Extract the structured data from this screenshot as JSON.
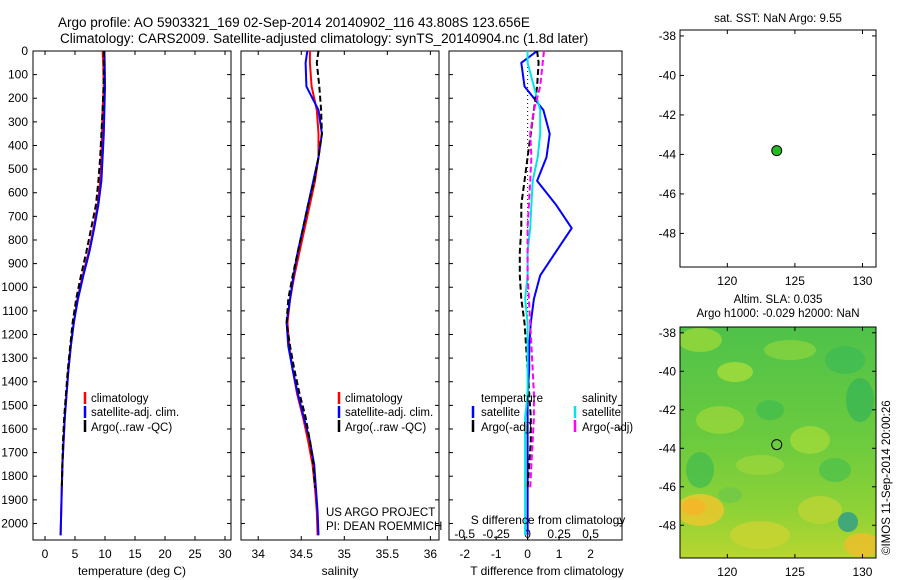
{
  "header": {
    "line1": "Argo profile: AO 5903321_169 02-Sep-2014 20140902_116 43.808S 123.656E",
    "line2": "Climatology: CARS2009. Satellite-adjusted climatology: synTS_20140904.nc (1.8d later)"
  },
  "credit": {
    "line1": "US ARGO PROJECT",
    "line2": "PI: DEAN ROEMMICH"
  },
  "watermark": "©IMOS 11-Sep-2014 20:00:26",
  "colors": {
    "climatology": "#ff0000",
    "satellite": "#0000ff",
    "argo": "#000000",
    "sal_satellite": "#00e5e5",
    "sal_argo": "#ff00ff",
    "marker": "#22bb22"
  },
  "chart_data": [
    {
      "type": "line",
      "id": "temperature",
      "xlabel": "temperature (deg C)",
      "ylabel": "",
      "xlim": [
        -2,
        31
      ],
      "ylim": [
        2070,
        0
      ],
      "xticks": [
        "0",
        "5",
        "10",
        "15",
        "20",
        "25",
        "30"
      ],
      "yticks": [
        "0",
        "100",
        "200",
        "300",
        "400",
        "500",
        "600",
        "700",
        "800",
        "900",
        "1000",
        "1100",
        "1200",
        "1300",
        "1400",
        "1500",
        "1600",
        "1700",
        "1800",
        "1900",
        "2000"
      ],
      "legend": [
        "climatology",
        "satellite-adj. clim.",
        "Argo(..raw -QC)"
      ],
      "series": [
        {
          "name": "climatology",
          "color": "#ff0000",
          "dash": "",
          "x": [
            9.6,
            9.7,
            9.8,
            9.6,
            9.5,
            9.4,
            9.2,
            8.8,
            8.1,
            7.3,
            6.3,
            5.4,
            4.8,
            4.3,
            3.9,
            3.6,
            3.3,
            3.1,
            2.9,
            2.8,
            2.7,
            2.6
          ],
          "y": [
            0,
            50,
            150,
            250,
            350,
            450,
            550,
            650,
            750,
            850,
            950,
            1050,
            1150,
            1250,
            1350,
            1450,
            1550,
            1650,
            1750,
            1850,
            1950,
            2050
          ]
        },
        {
          "name": "satellite-adj. clim.",
          "color": "#0000ff",
          "dash": "",
          "x": [
            9.9,
            9.95,
            10.0,
            9.9,
            9.8,
            9.6,
            9.4,
            8.9,
            8.2,
            7.4,
            6.4,
            5.5,
            4.8,
            4.3,
            3.9,
            3.6,
            3.3,
            3.1,
            2.9,
            2.8,
            2.7,
            2.6
          ],
          "y": [
            0,
            50,
            150,
            250,
            350,
            450,
            550,
            650,
            750,
            850,
            950,
            1050,
            1150,
            1250,
            1350,
            1450,
            1550,
            1650,
            1750,
            1850,
            1950,
            2050
          ]
        },
        {
          "name": "Argo(..raw -QC)",
          "color": "#000000",
          "dash": "6,3",
          "x": [
            9.8,
            9.8,
            9.75,
            9.6,
            9.4,
            9.2,
            8.9,
            8.5,
            7.7,
            6.9,
            6.0,
            5.2,
            4.6,
            4.2,
            3.8,
            3.5,
            3.2,
            3.0,
            2.9,
            2.8
          ],
          "y": [
            0,
            50,
            150,
            250,
            350,
            450,
            550,
            650,
            750,
            850,
            950,
            1050,
            1150,
            1250,
            1350,
            1450,
            1550,
            1650,
            1750,
            1850
          ]
        }
      ]
    },
    {
      "type": "line",
      "id": "salinity",
      "xlabel": "salinity",
      "ylabel": "",
      "xlim": [
        33.8,
        36.1
      ],
      "ylim": [
        2070,
        0
      ],
      "xticks": [
        "34",
        "34.5",
        "35",
        "35.5",
        "36"
      ],
      "legend": [
        "climatology",
        "satellite-adj. clim.",
        "Argo(..raw -QC)"
      ],
      "series": [
        {
          "name": "climatology",
          "color": "#ff0000",
          "dash": "",
          "x": [
            34.6,
            34.6,
            34.62,
            34.68,
            34.7,
            34.7,
            34.66,
            34.6,
            34.54,
            34.48,
            34.42,
            34.37,
            34.34,
            34.36,
            34.4,
            34.45,
            34.52,
            34.58,
            34.63,
            34.66,
            34.68,
            34.69
          ],
          "y": [
            0,
            50,
            150,
            250,
            350,
            450,
            550,
            650,
            750,
            850,
            950,
            1050,
            1150,
            1250,
            1350,
            1450,
            1550,
            1650,
            1750,
            1850,
            1950,
            2050
          ]
        },
        {
          "name": "satellite-adj. clim.",
          "color": "#0000ff",
          "dash": "",
          "x": [
            34.57,
            34.55,
            34.56,
            34.7,
            34.74,
            34.7,
            34.64,
            34.58,
            34.52,
            34.46,
            34.41,
            34.37,
            34.33,
            34.35,
            34.4,
            34.46,
            34.53,
            34.6,
            34.65,
            34.67,
            34.69,
            34.7
          ],
          "y": [
            0,
            50,
            150,
            250,
            350,
            450,
            550,
            650,
            750,
            850,
            950,
            1050,
            1150,
            1250,
            1350,
            1450,
            1550,
            1650,
            1750,
            1850,
            1950,
            2050
          ]
        },
        {
          "name": "Argo(..raw -QC)",
          "color": "#000000",
          "dash": "6,3",
          "x": [
            34.7,
            34.68,
            34.71,
            34.73,
            34.74,
            34.7,
            34.65,
            34.58,
            34.52,
            34.46,
            34.4,
            34.35,
            34.33,
            34.37,
            34.42,
            34.48,
            34.55,
            34.6,
            34.64,
            34.66
          ],
          "y": [
            0,
            50,
            150,
            250,
            350,
            450,
            550,
            650,
            750,
            850,
            950,
            1050,
            1150,
            1250,
            1350,
            1450,
            1550,
            1650,
            1750,
            1850
          ]
        }
      ]
    },
    {
      "type": "line",
      "id": "difference",
      "xlabel": "T difference from climatology",
      "xlabel_top": "S difference from climatology",
      "ylabel": "",
      "xlim": [
        -2.5,
        3.0
      ],
      "ylim": [
        2070,
        0
      ],
      "xticks": [
        "-2",
        "-1",
        "0",
        "1",
        "2"
      ],
      "xticks_top": [
        "-0.5",
        "-0.25",
        "0",
        "0.25",
        "0.5"
      ],
      "legend_headers": [
        "temperature",
        "salinity"
      ],
      "legend": [
        "satellite",
        "Argo(-adj)",
        "satellite",
        "Argo(-adj)"
      ],
      "series": [
        {
          "name": "satellite",
          "group": "temperature",
          "color": "#0000ff",
          "dash": "",
          "x": [
            0.3,
            -0.2,
            -0.1,
            0.5,
            0.7,
            0.6,
            0.3,
            0.9,
            1.4,
            0.9,
            0.4,
            0.2,
            0.1,
            0.05,
            0.05,
            0.0,
            0.0,
            0.0,
            0.0,
            0.0,
            0.0
          ],
          "y": [
            0,
            50,
            150,
            250,
            350,
            450,
            550,
            650,
            750,
            850,
            950,
            1050,
            1150,
            1250,
            1350,
            1450,
            1550,
            1650,
            1750,
            1850,
            2050
          ]
        },
        {
          "name": "Argo(-adj)",
          "group": "temperature",
          "color": "#000000",
          "dash": "6,3",
          "x": [
            0.3,
            0.35,
            0.3,
            0.2,
            0.1,
            0.0,
            -0.1,
            -0.2,
            -0.2,
            -0.25,
            -0.25,
            -0.2,
            -0.1,
            -0.05,
            0.0,
            0.05,
            0.1,
            0.1,
            0.05,
            0.0
          ],
          "y": [
            0,
            50,
            150,
            250,
            350,
            450,
            550,
            650,
            750,
            850,
            950,
            1050,
            1150,
            1250,
            1350,
            1450,
            1550,
            1650,
            1750,
            1850
          ]
        },
        {
          "name": "satellite",
          "group": "salinity",
          "color": "#00e5e5",
          "dash": "",
          "x": [
            0.0,
            0.0,
            0.05,
            0.1,
            0.1,
            0.08,
            0.04,
            0.03,
            0.02,
            0.0,
            0.0,
            -0.02,
            0.0,
            0.0,
            0.0,
            0.0,
            -0.02,
            -0.02,
            -0.02,
            -0.02,
            -0.02
          ],
          "y": [
            0,
            50,
            150,
            250,
            350,
            450,
            550,
            650,
            750,
            850,
            950,
            1050,
            1150,
            1250,
            1350,
            1450,
            1550,
            1650,
            1750,
            1850,
            2050
          ]
        },
        {
          "name": "Argo(-adj)",
          "group": "salinity",
          "color": "#ff00ff",
          "dash": "6,3",
          "x": [
            0.13,
            0.12,
            0.1,
            0.05,
            0.02,
            0.03,
            0.02,
            0.01,
            0.0,
            0.0,
            0.0,
            0.01,
            0.02,
            0.03,
            0.04,
            0.05,
            0.05,
            0.04,
            0.03,
            0.02
          ],
          "y": [
            0,
            50,
            150,
            250,
            350,
            450,
            550,
            650,
            750,
            850,
            950,
            1050,
            1150,
            1250,
            1350,
            1450,
            1550,
            1650,
            1750,
            1850
          ]
        }
      ]
    },
    {
      "type": "scatter",
      "id": "sst_map",
      "title": "sat. SST: NaN Argo: 9.55",
      "xlim": [
        116.5,
        131
      ],
      "ylim": [
        -49.7,
        -37.7
      ],
      "xticks": [
        "120",
        "125",
        "130"
      ],
      "yticks": [
        "-38",
        "-40",
        "-42",
        "-44",
        "-46",
        "-48"
      ],
      "points": [
        {
          "x": 123.656,
          "y": -43.808
        }
      ]
    },
    {
      "type": "heatmap",
      "id": "sla_map",
      "title_line1": "Altim. SLA: 0.035",
      "title_line2": "Argo h1000: -0.029 h2000: NaN",
      "xlim": [
        116.5,
        131
      ],
      "ylim": [
        -49.7,
        -37.7
      ],
      "xticks": [
        "120",
        "125",
        "130"
      ],
      "yticks": [
        "-38",
        "-40",
        "-42",
        "-44",
        "-46",
        "-48"
      ],
      "points": [
        {
          "x": 123.656,
          "y": -43.808
        }
      ]
    }
  ]
}
